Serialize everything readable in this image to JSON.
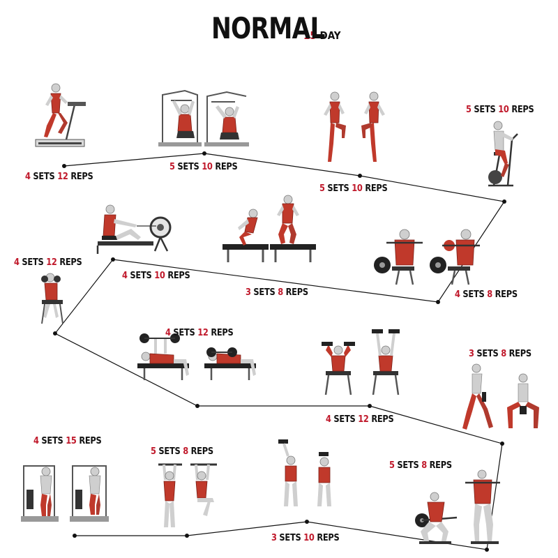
{
  "title": {
    "main": "NORMAL",
    "number": "15",
    "suffix": "DAY"
  },
  "colors": {
    "accent": "#c0192b",
    "text": "#111111",
    "muscle": "#c0392b",
    "skin": "#dcdcdc",
    "equipment": "#2a2a2a"
  },
  "exercises": [
    {
      "sets": "4",
      "reps": "12",
      "sets_word": "SETS",
      "reps_word": "REPS",
      "icon": "treadmill-runner-icon"
    },
    {
      "sets": "5",
      "reps": "10",
      "sets_word": "SETS",
      "reps_word": "REPS",
      "icon": "lat-pulldown-machine-icon"
    },
    {
      "sets": "5",
      "reps": "10",
      "sets_word": "SETS",
      "reps_word": "REPS",
      "icon": "high-knees-icon"
    },
    {
      "sets": "5",
      "reps": "10",
      "sets_word": "SETS",
      "reps_word": "REPS",
      "icon": "exercise-bike-icon"
    },
    {
      "sets": "4",
      "reps": "8",
      "sets_word": "SETS",
      "reps_word": "REPS",
      "icon": "barbell-seated-press-icon"
    },
    {
      "sets": "3",
      "reps": "8",
      "sets_word": "SETS",
      "reps_word": "REPS",
      "icon": "box-jump-icon"
    },
    {
      "sets": "4",
      "reps": "10",
      "sets_word": "SETS",
      "reps_word": "REPS",
      "icon": "rowing-machine-icon"
    },
    {
      "sets": "4",
      "reps": "12",
      "sets_word": "SETS",
      "reps_word": "REPS",
      "icon": "seated-curl-icon"
    },
    {
      "sets": "4",
      "reps": "12",
      "sets_word": "SETS",
      "reps_word": "REPS",
      "icon": "bench-press-icon"
    },
    {
      "sets": "4",
      "reps": "12",
      "sets_word": "SETS",
      "reps_word": "REPS",
      "icon": "dumbbell-shoulder-press-icon"
    },
    {
      "sets": "3",
      "reps": "8",
      "sets_word": "SETS",
      "reps_word": "REPS",
      "icon": "dumbbell-squat-icon"
    },
    {
      "sets": "5",
      "reps": "8",
      "sets_word": "SETS",
      "reps_word": "REPS",
      "icon": "barbell-squat-icon"
    },
    {
      "sets": "3",
      "reps": "10",
      "sets_word": "SETS",
      "reps_word": "REPS",
      "icon": "overhead-triceps-icon"
    },
    {
      "sets": "5",
      "reps": "8",
      "sets_word": "SETS",
      "reps_word": "REPS",
      "icon": "hanging-leg-raise-icon"
    },
    {
      "sets": "4",
      "reps": "15",
      "sets_word": "SETS",
      "reps_word": "REPS",
      "icon": "calf-raise-machine-icon"
    }
  ]
}
